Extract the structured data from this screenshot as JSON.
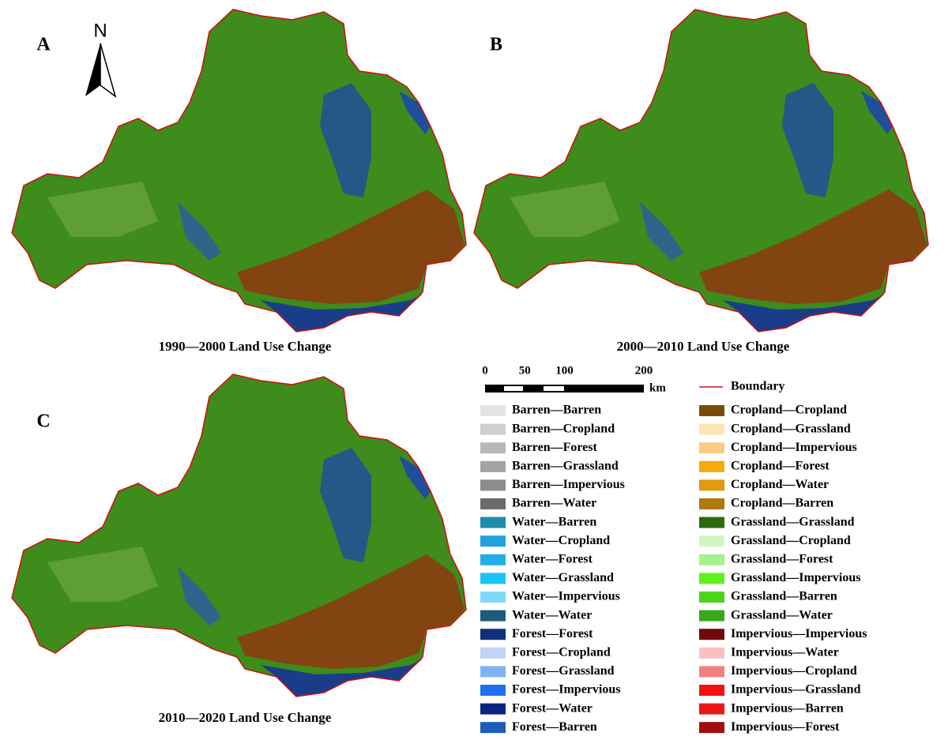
{
  "panels": [
    {
      "letter": "A",
      "caption": "1990—2000 Land Use Change"
    },
    {
      "letter": "B",
      "caption": "2000—2010 Land Use Change"
    },
    {
      "letter": "C",
      "caption": "2010—2020 Land Use Change"
    }
  ],
  "north": "N",
  "scale_bar": {
    "ticks": [
      0,
      50,
      100,
      200
    ],
    "unit": "km"
  },
  "legend": {
    "boundary": "Boundary",
    "boundary_color": "#d01010",
    "items": [
      {
        "label": "Barren—Barren",
        "color": "#e3e3e3"
      },
      {
        "label": "Barren—Cropland",
        "color": "#cfcfcf"
      },
      {
        "label": "Barren—Forest",
        "color": "#b8b8b8"
      },
      {
        "label": "Barren—Grassland",
        "color": "#a3a3a3"
      },
      {
        "label": "Barren—Impervious",
        "color": "#8c8c8c"
      },
      {
        "label": "Barren—Water",
        "color": "#6b6b6b"
      },
      {
        "label": "Water—Barren",
        "color": "#1f8bab"
      },
      {
        "label": "Water—Cropland",
        "color": "#21a2dc"
      },
      {
        "label": "Water—Forest",
        "color": "#22aee6"
      },
      {
        "label": "Water—Grassland",
        "color": "#1cc4f4"
      },
      {
        "label": "Water—Impervious",
        "color": "#7fd8f6"
      },
      {
        "label": "Water—Water",
        "color": "#1e5a7a"
      },
      {
        "label": "Forest—Forest",
        "color": "#10307a"
      },
      {
        "label": "Forest—Cropland",
        "color": "#c1d4f6"
      },
      {
        "label": "Forest—Grassland",
        "color": "#7fb2f0"
      },
      {
        "label": "Forest—Impervious",
        "color": "#1e6ff0"
      },
      {
        "label": "Forest—Water",
        "color": "#0b2680"
      },
      {
        "label": "Forest—Barren",
        "color": "#1c5db8"
      },
      {
        "label": "Cropland—Cropland",
        "color": "#7a4c0a"
      },
      {
        "label": "Cropland—Grassland",
        "color": "#fbe6b4"
      },
      {
        "label": "Cropland—Impervious",
        "color": "#f7cd86"
      },
      {
        "label": "Cropland—Forest",
        "color": "#f7a80c"
      },
      {
        "label": "Cropland—Water",
        "color": "#e09a10"
      },
      {
        "label": "Cropland—Barren",
        "color": "#b07810"
      },
      {
        "label": "Grassland—Grassland",
        "color": "#2c6a0c"
      },
      {
        "label": "Grassland—Cropland",
        "color": "#d2f5c4"
      },
      {
        "label": "Grassland—Forest",
        "color": "#a6f28c"
      },
      {
        "label": "Grassland—Impervious",
        "color": "#5ef21c"
      },
      {
        "label": "Grassland—Barren",
        "color": "#4cd41c"
      },
      {
        "label": "Grassland—Water",
        "color": "#3aa61a"
      },
      {
        "label": "Impervious—Impervious",
        "color": "#6e0a0a"
      },
      {
        "label": "Impervious—Water",
        "color": "#f9c0c0"
      },
      {
        "label": "Impervious—Cropland",
        "color": "#f28080"
      },
      {
        "label": "Impervious—Grassland",
        "color": "#f21010"
      },
      {
        "label": "Impervious—Barren",
        "color": "#e81818"
      },
      {
        "label": "Impervious—Forest",
        "color": "#a00e0e"
      }
    ]
  }
}
